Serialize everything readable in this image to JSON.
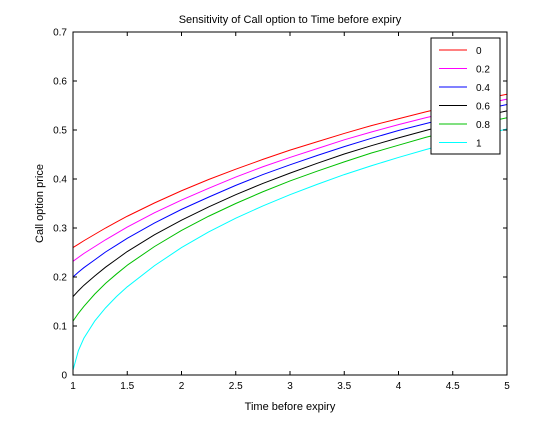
{
  "chart_data": {
    "type": "line",
    "title": "Sensitivity of Call option to Time before expiry",
    "xlabel": "Time before expiry",
    "ylabel": "Call option price",
    "xlim": [
      1,
      5
    ],
    "ylim": [
      0,
      0.7
    ],
    "xticks": [
      "1",
      "1.5",
      "2",
      "2.5",
      "3",
      "3.5",
      "4",
      "4.5",
      "5"
    ],
    "yticks": [
      "0",
      "0.1",
      "0.2",
      "0.3",
      "0.4",
      "0.5",
      "0.6",
      "0.7"
    ],
    "grid": false,
    "legend_position": "top-right",
    "x": [
      1,
      1.05,
      1.1,
      1.2,
      1.3,
      1.4,
      1.5,
      1.75,
      2,
      2.25,
      2.5,
      2.75,
      3,
      3.25,
      3.5,
      3.75,
      4,
      4.25,
      4.5,
      4.75,
      5
    ],
    "series": [
      {
        "name": "0",
        "color": "#ff0000",
        "values": [
          0.26,
          0.267,
          0.274,
          0.287,
          0.3,
          0.312,
          0.324,
          0.351,
          0.376,
          0.399,
          0.42,
          0.44,
          0.459,
          0.476,
          0.493,
          0.509,
          0.523,
          0.537,
          0.55,
          0.562,
          0.573
        ]
      },
      {
        "name": "0.2",
        "color": "#ff00ff",
        "values": [
          0.232,
          0.24,
          0.248,
          0.262,
          0.276,
          0.289,
          0.302,
          0.331,
          0.357,
          0.381,
          0.404,
          0.425,
          0.444,
          0.462,
          0.48,
          0.496,
          0.511,
          0.525,
          0.538,
          0.551,
          0.563
        ]
      },
      {
        "name": "0.4",
        "color": "#0000ff",
        "values": [
          0.2,
          0.21,
          0.219,
          0.235,
          0.251,
          0.265,
          0.279,
          0.31,
          0.338,
          0.363,
          0.387,
          0.409,
          0.429,
          0.448,
          0.466,
          0.483,
          0.499,
          0.513,
          0.527,
          0.54,
          0.552
        ]
      },
      {
        "name": "0.6",
        "color": "#000000",
        "values": [
          0.16,
          0.172,
          0.183,
          0.202,
          0.22,
          0.236,
          0.252,
          0.286,
          0.316,
          0.343,
          0.368,
          0.391,
          0.412,
          0.432,
          0.451,
          0.468,
          0.484,
          0.499,
          0.514,
          0.527,
          0.539
        ]
      },
      {
        "name": "0.8",
        "color": "#00c000",
        "values": [
          0.11,
          0.126,
          0.14,
          0.165,
          0.187,
          0.206,
          0.224,
          0.262,
          0.295,
          0.324,
          0.35,
          0.374,
          0.396,
          0.416,
          0.435,
          0.453,
          0.469,
          0.485,
          0.499,
          0.513,
          0.525
        ]
      },
      {
        "name": "1",
        "color": "#00ffff",
        "values": [
          0.01,
          0.05,
          0.075,
          0.11,
          0.137,
          0.16,
          0.18,
          0.223,
          0.26,
          0.292,
          0.32,
          0.345,
          0.368,
          0.389,
          0.409,
          0.427,
          0.444,
          0.46,
          0.475,
          0.489,
          0.502
        ]
      }
    ]
  }
}
